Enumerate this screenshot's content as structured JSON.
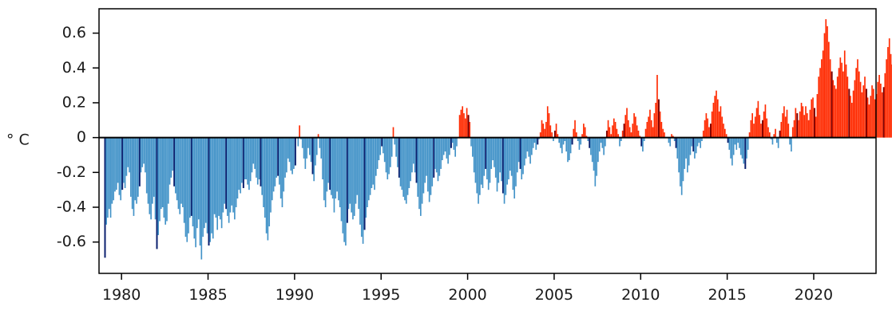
{
  "chart_data": {
    "type": "bar",
    "title": "",
    "xlabel": "",
    "ylabel": "° C",
    "xlim": [
      1978.7,
      2023.6
    ],
    "ylim": [
      -0.78,
      0.74
    ],
    "grid": false,
    "zero_line": true,
    "x_ticks": [
      1980,
      1985,
      1990,
      1995,
      2000,
      2005,
      2010,
      2015,
      2020
    ],
    "x_tick_labels": [
      "1980",
      "1985",
      "1990",
      "1995",
      "2000",
      "2005",
      "2010",
      "2015",
      "2020"
    ],
    "y_ticks": [
      0.6,
      0.4,
      0.2,
      0,
      -0.2,
      -0.4,
      -0.6
    ],
    "y_tick_labels": [
      "0.6",
      "0.4",
      "0.2",
      "0",
      "-0.2",
      "-0.4",
      "-0.6"
    ],
    "colors": {
      "positive": "#ff2a00",
      "positive_january": "#7a0000",
      "negative": "#4393c8",
      "negative_january": "#0a1f6e",
      "baseline": "#000000"
    },
    "series_description": "Monthly temperature anomaly (° C); January bars drawn darker",
    "series": [
      {
        "start_year": 1979,
        "start_month": 1,
        "values": [
          -0.69,
          -0.5,
          -0.46,
          -0.41,
          -0.46,
          -0.38,
          -0.36,
          -0.31,
          -0.3,
          -0.26,
          -0.33,
          -0.36,
          -0.3,
          -0.26,
          -0.29,
          -0.22,
          -0.17,
          -0.2,
          -0.34,
          -0.41,
          -0.45,
          -0.36,
          -0.38,
          -0.34,
          -0.28,
          -0.2,
          -0.17,
          -0.15,
          -0.2,
          -0.32,
          -0.38,
          -0.44,
          -0.47,
          -0.38,
          -0.34,
          -0.47,
          -0.64,
          -0.56,
          -0.48,
          -0.41,
          -0.4,
          -0.46,
          -0.5,
          -0.48,
          -0.38,
          -0.27,
          -0.23,
          -0.19,
          -0.28,
          -0.32,
          -0.36,
          -0.41,
          -0.44,
          -0.38,
          -0.4,
          -0.49,
          -0.57,
          -0.6,
          -0.55,
          -0.46,
          -0.45,
          -0.51,
          -0.58,
          -0.63,
          -0.52,
          -0.47,
          -0.62,
          -0.7,
          -0.57,
          -0.52,
          -0.49,
          -0.55,
          -0.62,
          -0.6,
          -0.55,
          -0.58,
          -0.44,
          -0.46,
          -0.53,
          -0.45,
          -0.47,
          -0.52,
          -0.43,
          -0.38,
          -0.41,
          -0.45,
          -0.49,
          -0.43,
          -0.39,
          -0.43,
          -0.47,
          -0.4,
          -0.35,
          -0.3,
          -0.32,
          -0.26,
          -0.29,
          -0.24,
          -0.24,
          -0.27,
          -0.3,
          -0.25,
          -0.2,
          -0.15,
          -0.18,
          -0.23,
          -0.27,
          -0.24,
          -0.28,
          -0.33,
          -0.4,
          -0.46,
          -0.55,
          -0.59,
          -0.51,
          -0.43,
          -0.36,
          -0.31,
          -0.28,
          -0.23,
          -0.22,
          -0.27,
          -0.35,
          -0.4,
          -0.31,
          -0.23,
          -0.2,
          -0.12,
          -0.14,
          -0.19,
          -0.21,
          -0.18,
          -0.16,
          0.0,
          -0.05,
          0.07,
          -0.01,
          -0.06,
          -0.12,
          -0.18,
          -0.12,
          -0.06,
          -0.1,
          -0.14,
          -0.21,
          -0.25,
          -0.16,
          -0.1,
          0.02,
          -0.06,
          -0.12,
          -0.24,
          -0.36,
          -0.4,
          -0.31,
          -0.26,
          -0.3,
          -0.33,
          -0.35,
          -0.43,
          -0.35,
          -0.31,
          -0.36,
          -0.4,
          -0.48,
          -0.55,
          -0.6,
          -0.62,
          -0.49,
          -0.41,
          -0.38,
          -0.43,
          -0.47,
          -0.45,
          -0.38,
          -0.33,
          -0.41,
          -0.5,
          -0.57,
          -0.61,
          -0.53,
          -0.46,
          -0.4,
          -0.36,
          -0.33,
          -0.29,
          -0.27,
          -0.3,
          -0.22,
          -0.18,
          -0.13,
          -0.1,
          -0.05,
          -0.09,
          -0.14,
          -0.2,
          -0.24,
          -0.21,
          -0.17,
          -0.11,
          0.06,
          -0.04,
          -0.11,
          -0.17,
          -0.23,
          -0.28,
          -0.3,
          -0.34,
          -0.36,
          -0.38,
          -0.33,
          -0.29,
          -0.25,
          -0.2,
          -0.15,
          -0.2,
          -0.26,
          -0.34,
          -0.41,
          -0.45,
          -0.38,
          -0.32,
          -0.26,
          -0.22,
          -0.31,
          -0.37,
          -0.33,
          -0.28,
          -0.23,
          -0.18,
          -0.2,
          -0.25,
          -0.22,
          -0.18,
          -0.13,
          -0.1,
          -0.08,
          -0.12,
          -0.15,
          -0.1,
          -0.06,
          -0.03,
          -0.07,
          -0.11,
          -0.05,
          0.0,
          0.13,
          0.16,
          0.18,
          0.14,
          0.11,
          0.17,
          0.13,
          0.09,
          -0.05,
          -0.11,
          -0.2,
          -0.26,
          -0.32,
          -0.38,
          -0.33,
          -0.27,
          -0.29,
          -0.22,
          -0.18,
          -0.24,
          -0.3,
          -0.26,
          -0.18,
          -0.13,
          -0.17,
          -0.23,
          -0.31,
          -0.26,
          -0.2,
          -0.25,
          -0.32,
          -0.38,
          -0.33,
          -0.27,
          -0.24,
          -0.19,
          -0.22,
          -0.3,
          -0.35,
          -0.28,
          -0.2,
          -0.14,
          -0.18,
          -0.24,
          -0.21,
          -0.16,
          -0.12,
          -0.08,
          -0.11,
          -0.15,
          -0.1,
          -0.06,
          -0.03,
          -0.07,
          -0.04,
          -0.01,
          0.03,
          0.1,
          0.08,
          0.05,
          0.09,
          0.18,
          0.14,
          0.07,
          0.03,
          -0.02,
          0.04,
          0.08,
          0.02,
          -0.03,
          -0.06,
          -0.09,
          -0.04,
          -0.02,
          -0.08,
          -0.14,
          -0.13,
          -0.09,
          -0.04,
          0.05,
          0.1,
          0.03,
          -0.02,
          -0.07,
          -0.04,
          0.02,
          0.08,
          0.06,
          0.01,
          -0.02,
          -0.06,
          -0.1,
          -0.14,
          -0.19,
          -0.28,
          -0.22,
          -0.14,
          -0.08,
          -0.03,
          -0.06,
          -0.1,
          -0.05,
          0.04,
          0.1,
          0.06,
          0.02,
          0.07,
          0.11,
          0.09,
          0.05,
          0.02,
          -0.05,
          -0.02,
          0.04,
          0.08,
          0.13,
          0.17,
          0.1,
          0.06,
          0.03,
          0.08,
          0.14,
          0.12,
          0.07,
          0.04,
          0.01,
          -0.05,
          -0.08,
          -0.02,
          0.05,
          0.09,
          0.12,
          0.16,
          0.1,
          0.06,
          0.14,
          0.2,
          0.36,
          0.22,
          0.15,
          0.09,
          0.05,
          0.03,
          0.0,
          0.0,
          -0.03,
          -0.05,
          0.02,
          0.01,
          -0.02,
          -0.06,
          -0.12,
          -0.2,
          -0.28,
          -0.33,
          -0.25,
          -0.18,
          -0.12,
          -0.2,
          -0.16,
          -0.1,
          -0.05,
          -0.08,
          -0.12,
          -0.09,
          -0.05,
          -0.03,
          -0.06,
          -0.02,
          0.04,
          0.1,
          0.14,
          0.11,
          0.06,
          0.08,
          0.15,
          0.2,
          0.24,
          0.27,
          0.22,
          0.15,
          0.18,
          0.12,
          0.08,
          0.05,
          0.02,
          -0.03,
          -0.07,
          -0.12,
          -0.16,
          -0.1,
          -0.04,
          -0.07,
          -0.03,
          -0.06,
          -0.1,
          -0.12,
          -0.15,
          -0.18,
          -0.12,
          -0.07,
          0.03,
          0.1,
          0.14,
          0.08,
          0.12,
          0.17,
          0.21,
          0.13,
          0.08,
          0.1,
          0.15,
          0.19,
          0.11,
          0.06,
          0.03,
          -0.01,
          -0.04,
          0.02,
          0.05,
          -0.03,
          -0.06,
          0.04,
          0.09,
          0.14,
          0.18,
          0.12,
          0.16,
          0.08,
          -0.04,
          -0.08,
          0.06,
          0.1,
          0.17,
          0.14,
          0.1,
          0.15,
          0.2,
          0.18,
          0.13,
          0.18,
          0.14,
          0.1,
          0.16,
          0.22,
          0.23,
          0.17,
          0.12,
          0.25,
          0.35,
          0.4,
          0.45,
          0.5,
          0.6,
          0.68,
          0.64,
          0.55,
          0.45,
          0.38,
          0.33,
          0.3,
          0.28,
          0.35,
          0.4,
          0.46,
          0.43,
          0.38,
          0.5,
          0.42,
          0.35,
          0.28,
          0.24,
          0.2,
          0.27,
          0.33,
          0.4,
          0.45,
          0.38,
          0.32,
          0.26,
          0.3,
          0.35,
          0.28,
          0.23,
          0.19,
          0.24,
          0.3,
          0.28,
          0.22,
          0.25,
          0.32,
          0.36,
          0.31,
          0.26,
          0.29,
          0.37,
          0.45,
          0.52,
          0.57,
          0.48,
          0.42,
          0.38,
          0.34,
          0.4,
          0.44,
          0.39,
          0.35,
          0.41,
          0.48,
          0.56,
          0.59,
          0.53,
          0.47,
          0.43,
          0.4,
          0.45,
          0.5,
          0.44,
          0.39,
          0.42,
          0.36,
          0.3,
          0.25,
          0.19,
          0.23,
          0.28,
          0.25,
          0.32,
          0.38,
          0.42,
          0.36,
          0.3,
          0.33,
          0.28,
          0.35,
          0.4,
          0.37,
          0.3,
          0.26,
          0.31,
          0.38,
          0.42,
          0.35,
          0.28,
          0.24,
          0.3,
          0.35,
          0.29,
          0.24,
          0.27,
          0.33,
          0.38,
          0.51
        ]
      }
    ]
  }
}
